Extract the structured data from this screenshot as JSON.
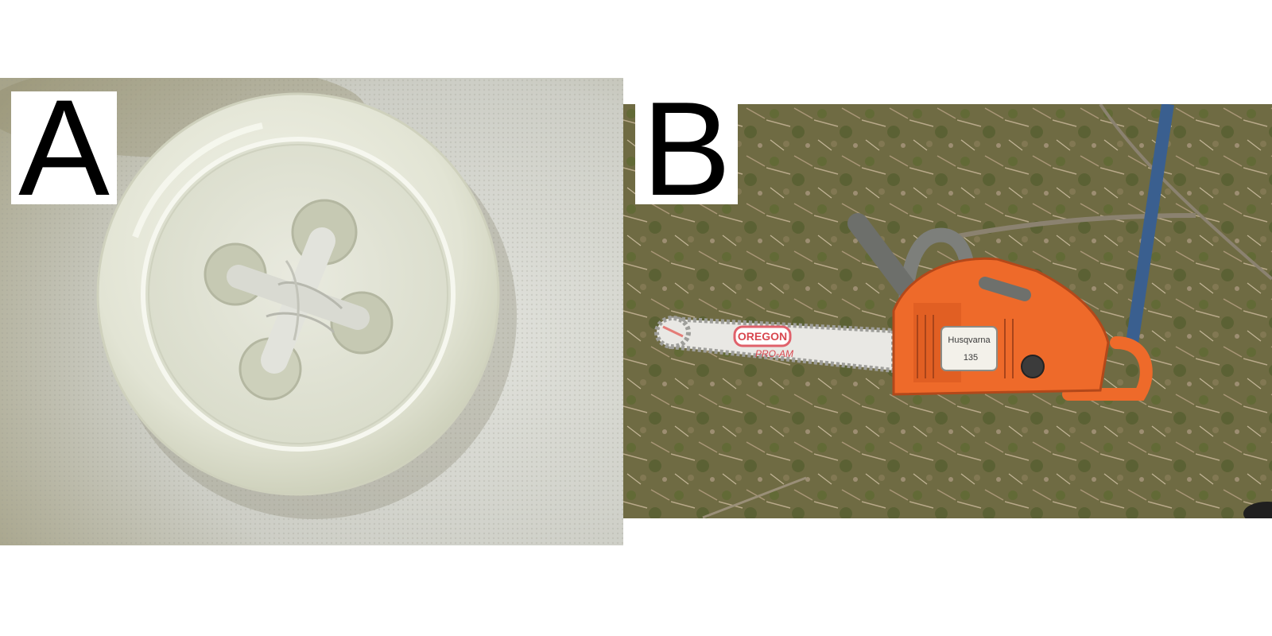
{
  "panels": [
    {
      "label": "A",
      "subject": "button-photo",
      "colors": {
        "fabric": "#c9cbc3",
        "button": "#e4e6d8",
        "thread": "#d9dad2"
      }
    },
    {
      "label": "B",
      "subject": "chainsaw-photo",
      "bar_brand_text": "OREGON",
      "bar_sub_text": "PRO-AM",
      "body_brand_text": "Husqvarna",
      "body_model_text": "135",
      "colors": {
        "ground": "#6f6b43",
        "saw_orange": "#ee6a2a",
        "bar": "#e9e8e4",
        "strap": "#3a5f8f"
      }
    }
  ]
}
